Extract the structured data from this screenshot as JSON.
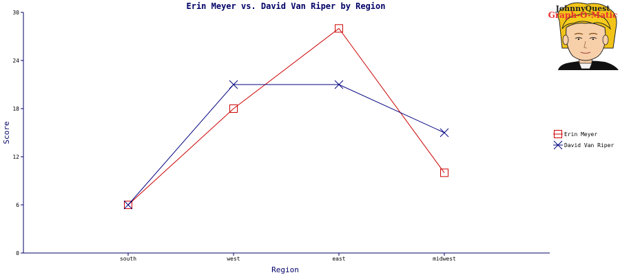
{
  "chart_data": {
    "type": "line",
    "title": "Erin Meyer vs. David Van Riper by Region",
    "xlabel": "Region",
    "ylabel": "Score",
    "categories": [
      "south",
      "west",
      "east",
      "midwest"
    ],
    "ylim": [
      0,
      30
    ],
    "yticks": [
      0,
      6,
      12,
      18,
      24,
      30
    ],
    "grid": false,
    "legend_position": "right",
    "series": [
      {
        "name": "Erin Meyer",
        "values": [
          6,
          18,
          28,
          10
        ],
        "color": "#cc0000",
        "marker": "square"
      },
      {
        "name": "David Van Riper",
        "values": [
          6,
          21,
          21,
          15
        ],
        "color": "#000080",
        "marker": "x"
      }
    ]
  },
  "logo": {
    "line1": "JohnnyQuest",
    "line2": "Graph-O-Matic"
  }
}
